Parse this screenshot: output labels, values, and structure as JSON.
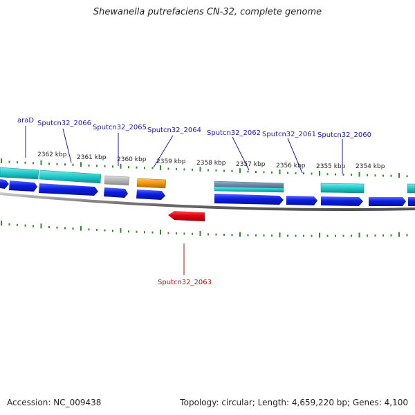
{
  "title": "Shewanella putrefaciens CN-32, complete genome",
  "footer": {
    "accession": "Accession: NC_009438",
    "summary": "Topology: circular; Length: 4,659,220 bp; Genes: 4,100"
  },
  "colors": {
    "forward_gene": "#0a1ee0",
    "reverse_gene": "#e00010",
    "cds_cyan": "#1ec8c8",
    "cds_gray": "#b4b4b4",
    "cds_orange": "#f0960a",
    "cds_steel": "#6a8aa8",
    "backbone": "#808080",
    "tick": "#2e8b2e",
    "label_forward": "#1a1ab0",
    "label_reverse": "#c01010"
  },
  "scale_labels": [
    "2362 kbp",
    "2361 kbp",
    "2360 kbp",
    "2359 kbp",
    "2358 kbp",
    "2357 kbp",
    "2356 kbp",
    "2355 kbp",
    "2354 kbp"
  ],
  "gene_labels": {
    "forward": [
      "araD",
      "Sputcn32_2066",
      "Sputcn32_2065",
      "Sputcn32_2064",
      "Sputcn32_2062",
      "Sputcn32_2061",
      "Sputcn32_2060"
    ],
    "reverse": [
      "Sputcn32_2063"
    ]
  }
}
